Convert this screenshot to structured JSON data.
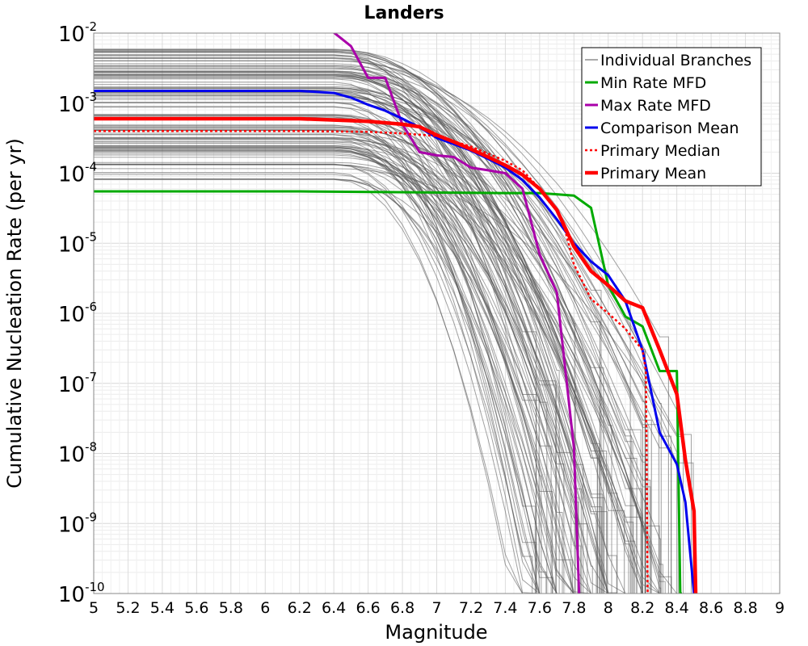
{
  "chart_data": {
    "type": "line",
    "title": "Landers",
    "xlabel": "Magnitude",
    "ylabel": "Cumulative Nucleation Rate (per yr)",
    "xlim": [
      5,
      9
    ],
    "ylim": [
      1e-10,
      0.01
    ],
    "yscale": "log",
    "grid": true,
    "legend_position": "top-right",
    "x_ticks": [
      "5",
      "5.2",
      "5.4",
      "5.6",
      "5.8",
      "6",
      "6.2",
      "6.4",
      "6.6",
      "6.8",
      "7",
      "7.2",
      "7.4",
      "7.6",
      "7.8",
      "8",
      "8.2",
      "8.4",
      "8.6",
      "8.8",
      "9"
    ],
    "y_ticks": [
      {
        "base": "10",
        "exp": "-10",
        "value": 1e-10
      },
      {
        "base": "10",
        "exp": "-9",
        "value": 1e-09
      },
      {
        "base": "10",
        "exp": "-8",
        "value": 1e-08
      },
      {
        "base": "10",
        "exp": "-7",
        "value": 1e-07
      },
      {
        "base": "10",
        "exp": "-6",
        "value": 1e-06
      },
      {
        "base": "10",
        "exp": "-5",
        "value": 1e-05
      },
      {
        "base": "10",
        "exp": "-4",
        "value": 0.0001
      },
      {
        "base": "10",
        "exp": "-3",
        "value": 0.001
      },
      {
        "base": "10",
        "exp": "-2",
        "value": 0.01
      }
    ],
    "branches": {
      "name": "Individual Branches",
      "color": "#555555",
      "count": 120,
      "plateau_range": [
        8e-05,
        0.006
      ],
      "cutoff_magnitude_range": [
        7.55,
        8.5
      ]
    },
    "series": [
      {
        "name": "Min Rate MFD",
        "color": "#00aa00",
        "width": 3,
        "dash": "",
        "x": [
          5.0,
          6.2,
          7.4,
          7.6,
          7.7,
          7.8,
          7.9,
          8.0,
          8.1,
          8.2,
          8.3,
          8.4,
          8.42,
          8.43
        ],
        "y": [
          5.5e-05,
          5.5e-05,
          5.2e-05,
          5.2e-05,
          5e-05,
          4.8e-05,
          3.2e-05,
          2.5e-06,
          9e-07,
          6.5e-07,
          1.5e-07,
          1.5e-07,
          1e-10,
          1e-10
        ]
      },
      {
        "name": "Max Rate MFD",
        "color": "#aa00aa",
        "width": 3,
        "dash": "",
        "x": [
          6.4,
          6.5,
          6.6,
          6.7,
          6.8,
          6.9,
          7.0,
          7.1,
          7.2,
          7.3,
          7.4,
          7.5,
          7.6,
          7.7,
          7.8,
          7.83
        ],
        "y": [
          0.0102,
          0.0065,
          0.0023,
          0.0023,
          0.0005,
          0.0002,
          0.00018,
          0.00017,
          0.00012,
          0.00011,
          0.0001,
          6e-05,
          7e-06,
          2e-06,
          1.2e-08,
          1e-10
        ]
      },
      {
        "name": "Comparison Mean",
        "color": "#0000ee",
        "width": 3,
        "dash": "",
        "x": [
          5.0,
          6.2,
          6.4,
          6.5,
          6.6,
          6.7,
          6.8,
          6.9,
          7.0,
          7.1,
          7.2,
          7.3,
          7.4,
          7.5,
          7.6,
          7.7,
          7.8,
          7.9,
          8.0,
          8.1,
          8.2,
          8.3,
          8.4,
          8.45,
          8.5
        ],
        "y": [
          0.0015,
          0.0015,
          0.0014,
          0.0012,
          0.00095,
          0.00078,
          0.0006,
          0.00045,
          0.00032,
          0.00026,
          0.00021,
          0.00016,
          0.00012,
          8e-05,
          4.5e-05,
          2.2e-05,
          1e-05,
          5.5e-06,
          3.5e-06,
          1.5e-06,
          3e-07,
          2e-08,
          7e-09,
          2e-09,
          1e-10
        ]
      },
      {
        "name": "Primary Median",
        "color": "#ff0000",
        "width": 2.5,
        "dash": "3,3",
        "x": [
          5.0,
          6.2,
          6.6,
          6.8,
          7.0,
          7.2,
          7.4,
          7.5,
          7.6,
          7.7,
          7.75,
          7.8,
          7.9,
          8.0,
          8.1,
          8.2,
          8.22,
          8.23
        ],
        "y": [
          0.0004,
          0.0004,
          0.00039,
          0.00037,
          0.00034,
          0.00024,
          0.00015,
          0.00011,
          6e-05,
          3e-05,
          1.5e-05,
          5e-06,
          1.6e-06,
          1e-06,
          6e-07,
          3e-07,
          1.5e-07,
          1e-10
        ]
      },
      {
        "name": "Primary Mean",
        "color": "#ff0000",
        "width": 4.5,
        "dash": "",
        "x": [
          5.0,
          6.2,
          6.6,
          6.8,
          6.9,
          7.0,
          7.1,
          7.2,
          7.3,
          7.4,
          7.5,
          7.6,
          7.7,
          7.8,
          7.9,
          8.0,
          8.1,
          8.2,
          8.3,
          8.4,
          8.45,
          8.5,
          8.51
        ],
        "y": [
          0.0006,
          0.0006,
          0.00055,
          0.0005,
          0.00046,
          0.00035,
          0.00028,
          0.00022,
          0.00017,
          0.00013,
          9.5e-05,
          6e-05,
          3e-05,
          9e-06,
          4e-06,
          2.5e-06,
          1.5e-06,
          1.2e-06,
          3e-07,
          7e-08,
          8e-09,
          1.5e-09,
          1e-10
        ]
      }
    ]
  }
}
